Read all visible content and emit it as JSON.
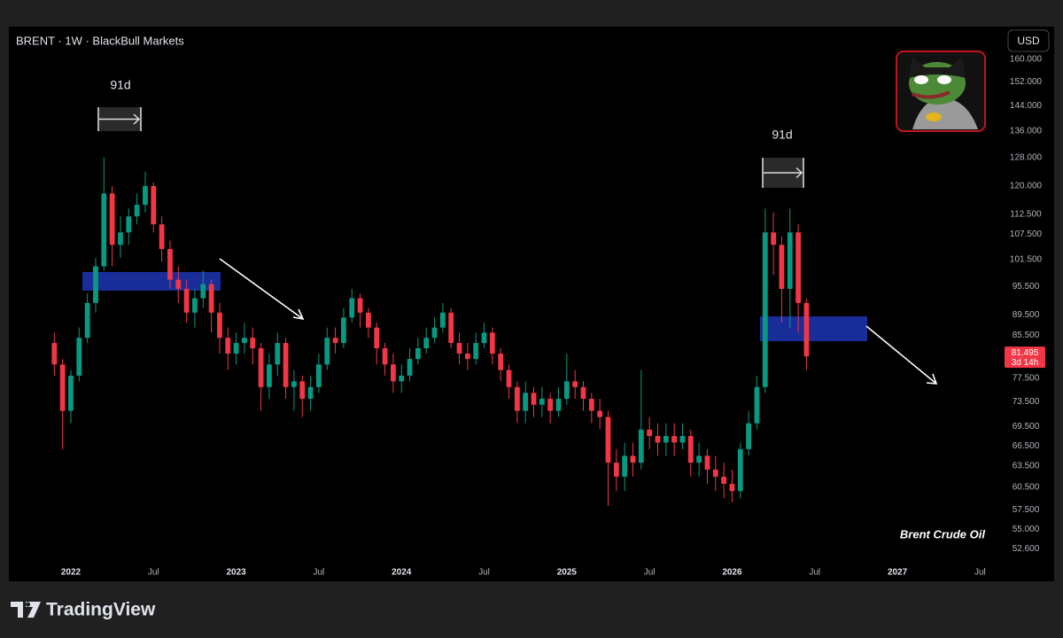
{
  "chart_data": {
    "type": "candlestick",
    "title": "BRENT · 1W · BlackBull Markets",
    "currency": "USD",
    "annotations": [
      "91d",
      "91d"
    ],
    "watermark": "Brent Crude Oil",
    "countdown": "3d 14h",
    "log_scale": true,
    "up_color": "#089981",
    "down_color": "#f23645",
    "xlim": [
      2021.625,
      2027.573
    ],
    "xticks": [
      2022,
      {
        "value": 2022.5,
        "label": "Jul"
      },
      2023,
      {
        "value": 2023.5,
        "label": "Jul"
      },
      2024,
      {
        "value": 2024.5,
        "label": "Jul"
      },
      2025,
      {
        "value": 2025.5,
        "label": "Jul"
      },
      2026,
      {
        "value": 2026.5,
        "label": "Jul"
      },
      2027,
      {
        "value": 2027.5,
        "label": "Jul"
      }
    ],
    "ylim": [
      51.3,
      172.4
    ],
    "yticks": [
      {
        "value": 160,
        "label": "160.000"
      },
      {
        "value": 152,
        "label": "152.000"
      },
      {
        "value": 144,
        "label": "144.000"
      },
      {
        "value": 136,
        "label": "136.000"
      },
      {
        "value": 128,
        "label": "128.000"
      },
      {
        "value": 120,
        "label": "120.000"
      },
      {
        "value": 112.5,
        "label": "112.500"
      },
      {
        "value": 107.5,
        "label": "107.500"
      },
      {
        "value": 101.5,
        "label": "101.500"
      },
      {
        "value": 95.5,
        "label": "95.500"
      },
      {
        "value": 89.5,
        "label": "89.500"
      },
      {
        "value": 85.5,
        "label": "85.500"
      },
      {
        "value": 77.5,
        "label": "77.500"
      },
      {
        "value": 73.5,
        "label": "73.500"
      },
      {
        "value": 69.5,
        "label": "69.500"
      },
      {
        "value": 66.5,
        "label": "66.500"
      },
      {
        "value": 63.5,
        "label": "63.500"
      },
      {
        "value": 60.5,
        "label": "60.500"
      },
      {
        "value": 57.5,
        "label": "57.500"
      },
      {
        "value": 55,
        "label": "55.000"
      },
      {
        "value": 52.6,
        "label": "52.600"
      }
    ],
    "x": [
      2021.9,
      2021.95,
      2022.0,
      2022.05,
      2022.1,
      2022.15,
      2022.2,
      2022.25,
      2022.3,
      2022.35,
      2022.4,
      2022.45,
      2022.5,
      2022.55,
      2022.6,
      2022.65,
      2022.7,
      2022.75,
      2022.8,
      2022.85,
      2022.9,
      2022.95,
      2023.0,
      2023.05,
      2023.1,
      2023.15,
      2023.2,
      2023.25,
      2023.3,
      2023.35,
      2023.4,
      2023.45,
      2023.5,
      2023.55,
      2023.6,
      2023.65,
      2023.7,
      2023.75,
      2023.8,
      2023.85,
      2023.9,
      2023.95,
      2024.0,
      2024.05,
      2024.1,
      2024.15,
      2024.2,
      2024.25,
      2024.3,
      2024.35,
      2024.4,
      2024.45,
      2024.5,
      2024.55,
      2024.6,
      2024.65,
      2024.7,
      2024.75,
      2024.8,
      2024.85,
      2024.9,
      2024.95,
      2025.0,
      2025.05,
      2025.1,
      2025.15,
      2025.2,
      2025.25,
      2025.3,
      2025.35,
      2025.4,
      2025.45,
      2025.5,
      2025.55,
      2025.6,
      2025.65,
      2025.7,
      2025.75,
      2025.8,
      2025.85,
      2025.9,
      2025.95,
      2026.0,
      2026.05,
      2026.1,
      2026.15,
      2026.2,
      2026.25,
      2026.3,
      2026.35,
      2026.4,
      2026.45
    ],
    "open": [
      84,
      80,
      72,
      78,
      85,
      92,
      100,
      118,
      105,
      108,
      112,
      115,
      120,
      110,
      104,
      97,
      95,
      90,
      93,
      96,
      90,
      85,
      82,
      84,
      85,
      83,
      76,
      80,
      84,
      76,
      77,
      74,
      76,
      80,
      85,
      84,
      89,
      93,
      90,
      87,
      83,
      80,
      77,
      78,
      81,
      83,
      85,
      87,
      90,
      84,
      82,
      81,
      84,
      86,
      82,
      79,
      76,
      72,
      75,
      73,
      74,
      72,
      74,
      77,
      76,
      74,
      72,
      71,
      64,
      62,
      65,
      64,
      69,
      68,
      67,
      68,
      67,
      68,
      64,
      65,
      63,
      62,
      61,
      60,
      66,
      70,
      76,
      108,
      105,
      95,
      108,
      92
    ],
    "high": [
      86,
      81,
      79,
      87,
      94,
      102,
      128,
      120,
      112,
      114,
      118,
      124,
      121,
      112,
      106,
      100,
      97,
      95,
      99,
      97,
      92,
      87,
      86,
      88,
      87,
      84,
      82,
      86,
      85,
      79,
      78,
      78,
      82,
      87,
      87,
      91,
      95,
      94,
      91,
      88,
      84,
      82,
      80,
      83,
      85,
      87,
      89,
      92,
      91,
      86,
      84,
      86,
      88,
      87,
      83,
      80,
      77,
      77,
      76,
      76,
      75,
      76,
      82,
      79,
      77,
      75,
      74,
      72,
      66,
      67,
      67,
      79,
      71,
      70,
      70,
      70,
      70,
      69,
      67,
      66,
      65,
      64,
      63,
      67,
      72,
      78,
      114,
      113,
      107,
      114,
      110,
      93
    ],
    "low": [
      78,
      66,
      70,
      77,
      84,
      90,
      99,
      100,
      102,
      105,
      110,
      113,
      108,
      101,
      95,
      92,
      88,
      87,
      91,
      86,
      82,
      79,
      80,
      82,
      80,
      72,
      74,
      78,
      74,
      72,
      71,
      72,
      75,
      79,
      82,
      83,
      88,
      87,
      85,
      80,
      78,
      75,
      75,
      77,
      80,
      82,
      84,
      86,
      83,
      80,
      79,
      80,
      83,
      80,
      77,
      74,
      70,
      70,
      71,
      71,
      70,
      71,
      73,
      74,
      72,
      70,
      69,
      58,
      60,
      60,
      62,
      63,
      66,
      65,
      65,
      65,
      66,
      62,
      62,
      61,
      60,
      59,
      58.5,
      59,
      65,
      69,
      75,
      98,
      88,
      87,
      86,
      79
    ],
    "close": [
      80,
      72,
      78,
      85,
      92,
      100,
      118,
      105,
      108,
      112,
      115,
      120,
      110,
      104,
      97,
      95,
      90,
      93,
      96,
      90,
      85,
      82,
      84,
      85,
      83,
      76,
      80,
      84,
      76,
      77,
      74,
      76,
      80,
      85,
      84,
      89,
      93,
      90,
      87,
      83,
      80,
      77,
      78,
      81,
      83,
      85,
      87,
      90,
      84,
      82,
      81,
      84,
      86,
      82,
      79,
      76,
      72,
      75,
      73,
      74,
      72,
      74,
      77,
      76,
      74,
      72,
      71,
      64,
      62,
      65,
      64,
      69,
      68,
      67,
      68,
      67,
      68,
      64,
      65,
      63,
      62,
      61,
      60,
      66,
      70,
      76,
      108,
      105,
      95,
      108,
      92,
      81.495
    ]
  },
  "brand": "TradingView"
}
